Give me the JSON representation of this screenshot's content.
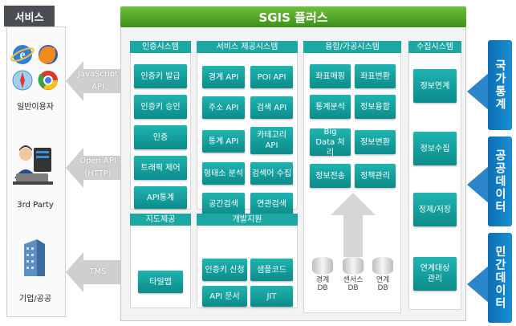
{
  "title": "SGIS 플러스",
  "service": {
    "header": "서비스",
    "users": [
      {
        "label": "일반이용자"
      },
      {
        "label": "3rd Party"
      },
      {
        "label": "기업/공공"
      }
    ]
  },
  "arrows": [
    {
      "line1": "JavaScript",
      "line2": "API"
    },
    {
      "line1": "Open API",
      "line2": "(HTTP)"
    },
    {
      "line1": "TMS",
      "line2": ""
    }
  ],
  "panels": {
    "auth": {
      "title": "인증시스템",
      "items": [
        "인증키 발급",
        "인증키 승인",
        "인증",
        "트래픽 제어",
        "API통계"
      ]
    },
    "service": {
      "title": "서비스 제공시스템",
      "items": [
        "경계 API",
        "POI API",
        "주소 API",
        "검색 API",
        "통계 API",
        "카테고리 API",
        "형태소 분석",
        "검색어 수집",
        "공간검색",
        "연관검색"
      ]
    },
    "fusion": {
      "title": "융합/가공시스템",
      "items": [
        "좌표매핑",
        "좌표변환",
        "통계분석",
        "정보융합",
        "Big Data 처리",
        "정보변환",
        "정보전송",
        "정책관리"
      ]
    },
    "collect": {
      "title": "수집시스템",
      "items": [
        "정보연계",
        "정보수집",
        "정제/저장",
        "연계대상 관리"
      ]
    },
    "map": {
      "title": "지도제공",
      "items": [
        "타일맵"
      ]
    },
    "dev": {
      "title": "개발지원",
      "items": [
        "인증키 신청",
        "샘플코드",
        "API 문서",
        "JIT"
      ]
    }
  },
  "databases": [
    {
      "name": "경계",
      "suffix": "DB"
    },
    {
      "name": "센서스",
      "suffix": "DB"
    },
    {
      "name": "연계",
      "suffix": "DB"
    }
  ],
  "sources": [
    {
      "label": "국가통계"
    },
    {
      "label": "공공데이터"
    },
    {
      "label": "민간데이터"
    }
  ]
}
